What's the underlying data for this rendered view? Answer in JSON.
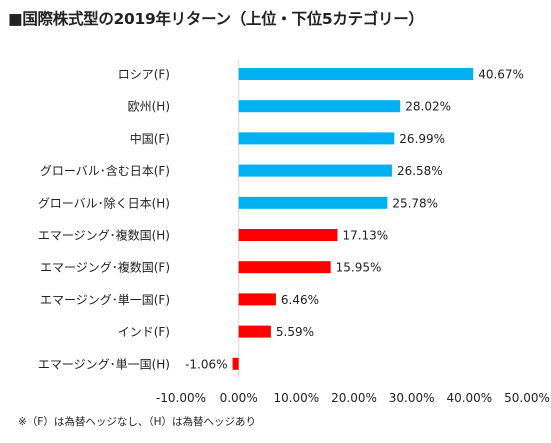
{
  "title": "■国際株式型の2019年リターン（上位・下位5カテゴリー）",
  "footnote": "※（F）は為替ヘッジなし、（H）は為替ヘッジあり",
  "chart_data": {
    "type": "bar",
    "orientation": "horizontal",
    "title": "■国際株式型の2019年リターン（上位・下位5カテゴリー）",
    "categories": [
      "ロシア(F)",
      "欧州(H)",
      "中国(F)",
      "グローバル･含む日本(F)",
      "グローバル･除く日本(H)",
      "エマージング･複数国(H)",
      "エマージング･複数国(F)",
      "エマージング･単一国(F)",
      "インド(F)",
      "エマージング･単一国(H)"
    ],
    "values": [
      40.67,
      28.02,
      26.99,
      26.58,
      25.78,
      17.13,
      15.95,
      6.46,
      5.59,
      -1.06
    ],
    "data_labels": [
      "40.67%",
      "28.02%",
      "26.99%",
      "26.58%",
      "25.78%",
      "17.13%",
      "15.95%",
      "6.46%",
      "5.59%",
      "-1.06%"
    ],
    "bar_colors": [
      "#00b0f0",
      "#00b0f0",
      "#00b0f0",
      "#00b0f0",
      "#00b0f0",
      "#ff0000",
      "#ff0000",
      "#ff0000",
      "#ff0000",
      "#ff0000"
    ],
    "xlim": [
      -10,
      50
    ],
    "x_ticks": [
      -10,
      0,
      10,
      20,
      30,
      40,
      50
    ],
    "x_tick_labels": [
      "-10.00%",
      "0.00%",
      "10.00%",
      "20.00%",
      "30.00%",
      "40.00%",
      "50.00%"
    ],
    "grid": false,
    "legend": "none"
  }
}
